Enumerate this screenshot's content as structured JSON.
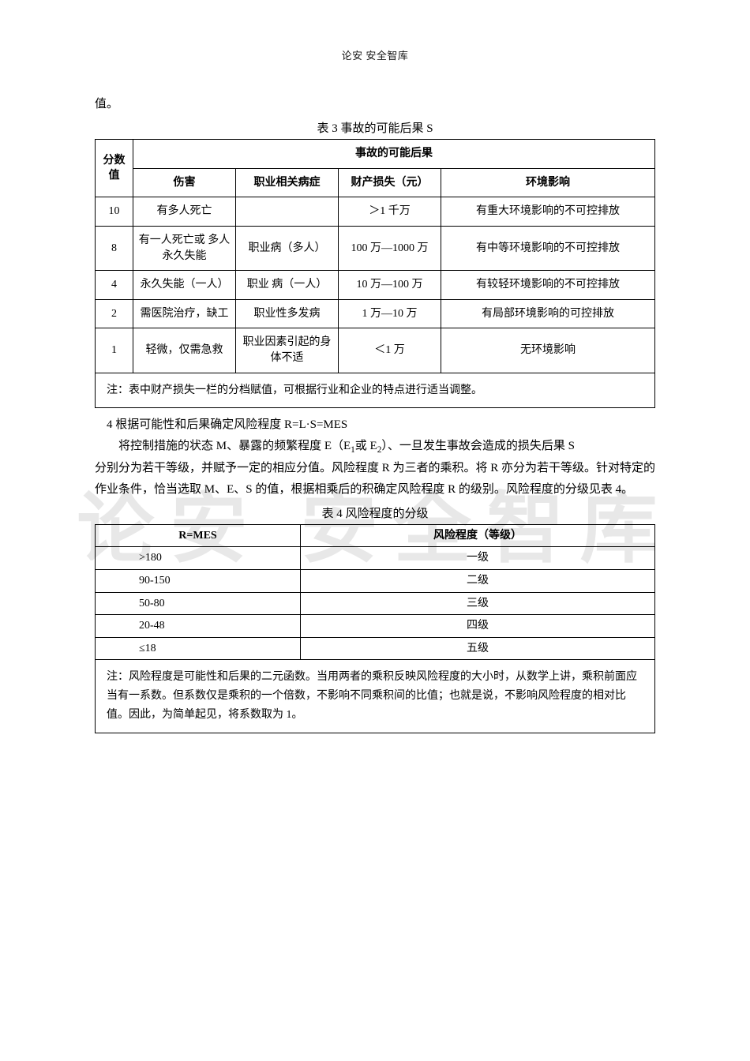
{
  "header": "论安 安全智库",
  "watermark": "论安 安全智库",
  "lead_fragment": "值。",
  "table3": {
    "caption": "表 3  事故的可能后果 S",
    "head_score": "分数值",
    "head_group": "事故的可能后果",
    "sub": {
      "harm": "伤害",
      "disease": "职业相关病症",
      "loss": "财产损失（元）",
      "env": "环境影响"
    },
    "rows": [
      {
        "score": "10",
        "harm": "有多人死亡",
        "disease": "",
        "loss": "＞1 千万",
        "env": "有重大环境影响的不可控排放"
      },
      {
        "score": "8",
        "harm": "有一人死亡或 多人永久失能",
        "disease": "职业病（多人）",
        "loss": "100 万—1000 万",
        "env": "有中等环境影响的不可控排放"
      },
      {
        "score": "4",
        "harm": "永久失能（一人）",
        "disease": "职业 病（一人）",
        "loss": "10 万—100 万",
        "env": "有较轻环境影响的不可控排放"
      },
      {
        "score": "2",
        "harm": "需医院治疗，缺工",
        "disease": "职业性多发病",
        "loss": "1 万—10 万",
        "env": "有局部环境影响的可控排放"
      },
      {
        "score": "1",
        "harm": "轻微，仅需急救",
        "disease": "职业因素引起的身体不适",
        "loss": "＜1 万",
        "env": "无环境影响"
      }
    ],
    "note": "注：表中财产损失一栏的分档赋值，可根据行业和企业的特点进行适当调整。"
  },
  "section4": {
    "title": "4  根据可能性和后果确定风险程度 R=L·S=MES",
    "para1a": "将控制措施的状态 M、暴露的频繁程度 E（E",
    "sub1": "1",
    "para1b": "或 E",
    "sub2": "2",
    "para1c": "）、一旦发生事故会造成的损失后果 S",
    "para2": "分别分为若干等级，并赋予一定的相应分值。风险程度 R 为三者的乘积。将 R 亦分为若干等级。针对特定的作业条件，恰当选取 M、E、S 的值，根据相乘后的积确定风险程度 R 的级别。风险程度的分级见表 4。"
  },
  "table4": {
    "caption": "表 4  风险程度的分级",
    "head_r": "R=MES",
    "head_level": "风险程度（等级）",
    "rows": [
      {
        "r": ">180",
        "level": "一级"
      },
      {
        "r": "90-150",
        "level": "二级"
      },
      {
        "r": "50-80",
        "level": "三级"
      },
      {
        "r": "20-48",
        "level": "四级"
      },
      {
        "r": "≤18",
        "level": "五级"
      }
    ],
    "note": "注：风险程度是可能性和后果的二元函数。当用两者的乘积反映风险程度的大小时，从数学上讲，乘积前面应当有一系数。但系数仅是乘积的一个倍数，不影响不同乘积间的比值；也就是说，不影响风险程度的相对比值。因此，为简单起见，将系数取为 1。"
  }
}
